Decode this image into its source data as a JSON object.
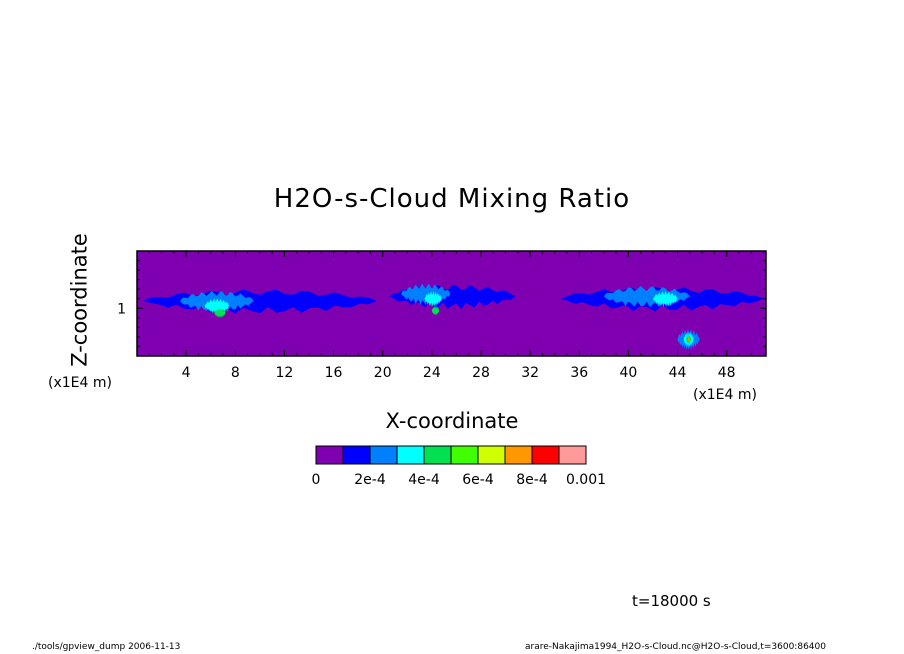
{
  "chart_data": {
    "type": "heatmap",
    "title": "H2O-s-Cloud Mixing Ratio",
    "xlabel": "X-coordinate",
    "ylabel": "Z-coordinate",
    "x_unit_label": "(x1E4 m)",
    "y_unit_label": "(x1E4 m)",
    "xlim": [
      0,
      51.2
    ],
    "ylim": [
      0,
      2.2
    ],
    "x_ticks": [
      4,
      8,
      12,
      16,
      20,
      24,
      28,
      32,
      36,
      40,
      44,
      48
    ],
    "y_ticks": [
      1
    ],
    "colorbar": {
      "levels": [
        0,
        0.0001,
        0.0002,
        0.0003,
        0.0004,
        0.0005,
        0.0006,
        0.0007,
        0.0008,
        0.0009,
        0.001
      ],
      "colors": [
        "#7f00b0",
        "#0000ff",
        "#0080ff",
        "#00ffff",
        "#00e050",
        "#40ff00",
        "#d0ff00",
        "#ff9800",
        "#ff0000",
        "#ff9a9a"
      ],
      "tick_labels": [
        "0",
        "2e-4",
        "4e-4",
        "6e-4",
        "8e-4",
        "0.001"
      ]
    },
    "cloud_regions": [
      {
        "x": [
          0.5,
          19.5
        ],
        "z_center": 1.15,
        "level": 1
      },
      {
        "x": [
          20.5,
          30.8
        ],
        "z_center": 1.25,
        "level": 1
      },
      {
        "x": [
          34.5,
          51.0
        ],
        "z_center": 1.2,
        "level": 1
      },
      {
        "x": [
          3.5,
          9.5
        ],
        "z_center": 1.15,
        "level": 2
      },
      {
        "x": [
          5.5,
          7.5
        ],
        "z_center": 1.05,
        "level": 3
      },
      {
        "x": [
          6.3,
          7.2
        ],
        "z_center": 0.9,
        "level": 4
      },
      {
        "x": [
          21.5,
          25.5
        ],
        "z_center": 1.3,
        "level": 2
      },
      {
        "x": [
          23.4,
          24.8
        ],
        "z_center": 1.2,
        "level": 3
      },
      {
        "x": [
          24.0,
          24.6
        ],
        "z_center": 0.95,
        "level": 4
      },
      {
        "x": [
          38.0,
          45.0
        ],
        "z_center": 1.25,
        "level": 2
      },
      {
        "x": [
          42.0,
          44.0
        ],
        "z_center": 1.2,
        "level": 3
      },
      {
        "x": [
          44.0,
          45.8
        ],
        "z_center": 0.35,
        "level": 2
      },
      {
        "x": [
          44.5,
          45.3
        ],
        "z_center": 0.35,
        "level": 3
      },
      {
        "x": [
          44.7,
          45.1
        ],
        "z_center": 0.35,
        "level": 4
      },
      {
        "x": [
          44.85,
          45.0
        ],
        "z_center": 0.35,
        "level": 7
      }
    ],
    "grid": false
  },
  "annotation": {
    "time": "t=18000 s"
  },
  "footer": {
    "left": "./tools/gpview_dump   2006-11-13",
    "right": "arare-Nakajima1994_H2O-s-Cloud.nc@H2O-s-Cloud,t=3600:86400"
  }
}
